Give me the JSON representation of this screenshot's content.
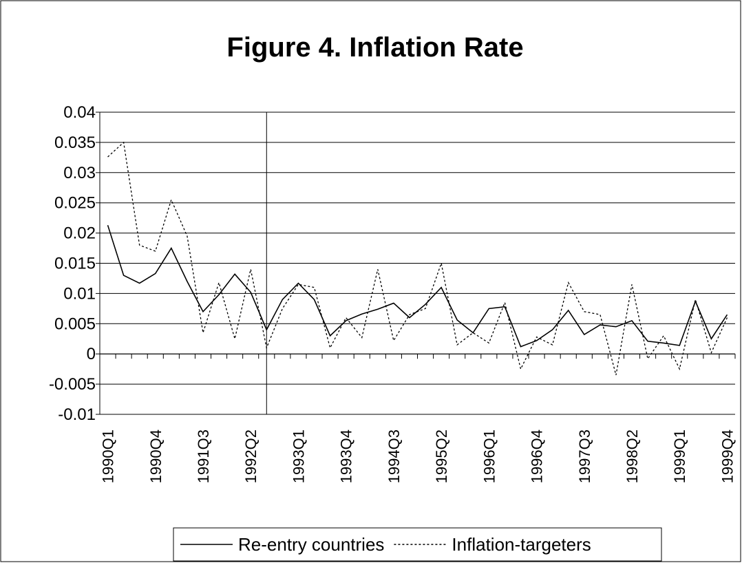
{
  "chart_data": {
    "type": "line",
    "title": "Figure 4. Inflation Rate",
    "categories": [
      "1990Q1",
      null,
      null,
      "1990Q4",
      null,
      null,
      "1991Q3",
      null,
      null,
      "1992Q2",
      null,
      null,
      "1993Q1",
      null,
      null,
      "1993Q4",
      null,
      null,
      "1994Q3",
      null,
      null,
      "1995Q2",
      null,
      null,
      "1996Q1",
      null,
      null,
      "1996Q4",
      null,
      null,
      "1997Q3",
      null,
      null,
      "1998Q2",
      null,
      null,
      "1999Q1",
      null,
      null,
      "1999Q4"
    ],
    "series": [
      {
        "name": "Re-entry countries",
        "color": "#000000",
        "dash": "solid",
        "values": [
          0.0213,
          0.013,
          0.0117,
          0.0133,
          0.0175,
          0.012,
          0.007,
          0.0098,
          0.0132,
          0.0102,
          0.004,
          0.009,
          0.0117,
          0.009,
          0.003,
          0.0055,
          0.0066,
          0.0074,
          0.0084,
          0.006,
          0.0082,
          0.011,
          0.0056,
          0.0035,
          0.0075,
          0.0078,
          0.0012,
          0.0022,
          0.004,
          0.0072,
          0.0032,
          0.0048,
          0.0045,
          0.0055,
          0.0021,
          0.0018,
          0.0014,
          0.0087,
          0.0025,
          0.0065
        ]
      },
      {
        "name": "Inflation-targeters",
        "color": "#000000",
        "dash": "dotted",
        "values": [
          0.0326,
          0.035,
          0.018,
          0.017,
          0.0255,
          0.0195,
          0.0035,
          0.0118,
          0.0025,
          0.014,
          0.001,
          0.0075,
          0.0115,
          0.011,
          0.001,
          0.006,
          0.0027,
          0.014,
          0.0022,
          0.0065,
          0.0075,
          0.015,
          0.0015,
          0.0035,
          0.0018,
          0.0085,
          -0.0025,
          0.0028,
          0.0015,
          0.0118,
          0.007,
          0.0065,
          -0.0035,
          0.0115,
          -0.0008,
          0.003,
          -0.0025,
          0.009,
          0.0002,
          0.006
        ]
      }
    ],
    "ylim": [
      -0.01,
      0.04
    ],
    "yticks": [
      -0.01,
      -0.005,
      0,
      0.005,
      0.01,
      0.015,
      0.02,
      0.025,
      0.03,
      0.035,
      0.04
    ],
    "grid": true,
    "legend": "bottom"
  }
}
